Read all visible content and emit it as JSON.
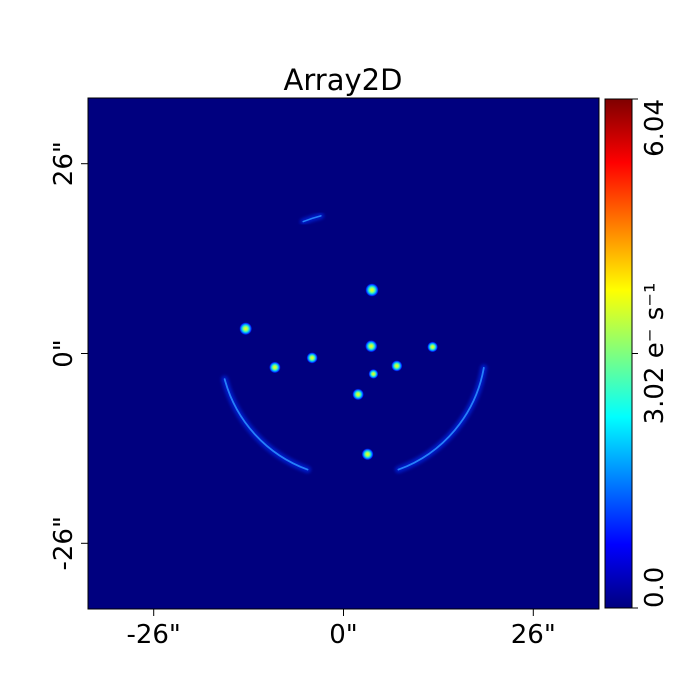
{
  "chart_data": {
    "type": "heatmap",
    "title": "Array2D",
    "xlabel": "",
    "ylabel": "",
    "xlim": [
      -35,
      35
    ],
    "ylim": [
      -35,
      35
    ],
    "x_ticks": [
      {
        "value": -26,
        "label": "-26\""
      },
      {
        "value": 0,
        "label": "0\""
      },
      {
        "value": 26,
        "label": "26\""
      }
    ],
    "y_ticks": [
      {
        "value": -26,
        "label": "-26\""
      },
      {
        "value": 0,
        "label": "0\""
      },
      {
        "value": 26,
        "label": "26\""
      }
    ],
    "colorbar": {
      "colormap": "jet",
      "range": [
        0.0,
        6.04
      ],
      "ticks": [
        {
          "value": 0.0,
          "label": "0.0"
        },
        {
          "value": 3.02,
          "label": "3.02 e⁻ s⁻¹"
        },
        {
          "value": 6.04,
          "label": "6.04"
        }
      ],
      "colors": [
        "#00007f",
        "#0000ff",
        "#007fff",
        "#00ffff",
        "#7fff7f",
        "#ffff00",
        "#ff7f00",
        "#ff0000",
        "#7f0000"
      ]
    },
    "background_value": 0.0,
    "sources": [
      {
        "x": 3.9,
        "y": 8.7,
        "peak": 4.8
      },
      {
        "x": -13.4,
        "y": 3.4,
        "peak": 4.5
      },
      {
        "x": 3.8,
        "y": 1.0,
        "peak": 4.2
      },
      {
        "x": -9.4,
        "y": -1.9,
        "peak": 3.8
      },
      {
        "x": -4.3,
        "y": -0.6,
        "peak": 3.6
      },
      {
        "x": 12.2,
        "y": 0.9,
        "peak": 3.3
      },
      {
        "x": 7.3,
        "y": -1.7,
        "peak": 3.6
      },
      {
        "x": 4.1,
        "y": -2.8,
        "peak": 2.8
      },
      {
        "x": 2.0,
        "y": -5.6,
        "peak": 3.8
      },
      {
        "x": 3.3,
        "y": -13.8,
        "peak": 4.0
      }
    ],
    "arcs": [
      {
        "name": "ring",
        "cx": 1.3,
        "cy": 1.2,
        "r": 18.2,
        "from_deg": 195,
        "to_deg": 250,
        "peak": 1.6
      },
      {
        "name": "ring",
        "cx": 1.3,
        "cy": 1.2,
        "r": 18.2,
        "from_deg": 290,
        "to_deg": 350,
        "peak": 1.6
      },
      {
        "name": "arc",
        "cx": 1.3,
        "cy": 1.2,
        "r": 18.2,
        "from_deg": 104,
        "to_deg": 112,
        "peak": 1.2
      }
    ]
  }
}
